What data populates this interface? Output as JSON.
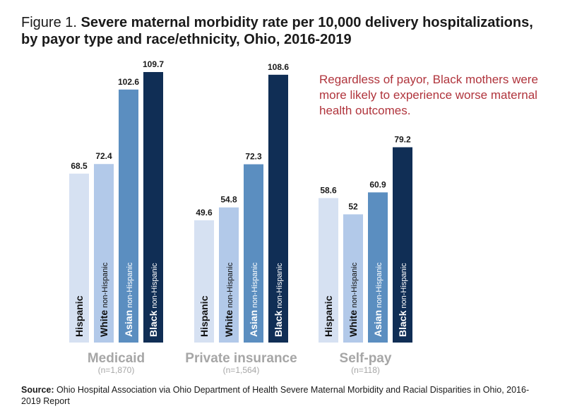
{
  "title": {
    "prefix": "Figure 1.",
    "main": "Severe maternal morbidity rate per 10,000 delivery hospitalizations, by payor type and race/ethnicity, Ohio, 2016-2019"
  },
  "callout": "Regardless of payor, Black mothers were more likely to experience worse maternal health outcomes.",
  "source": {
    "label": "Source:",
    "text": "Ohio Hospital Association via Ohio Department of Health Severe Maternal Morbidity and Racial Disparities in Ohio, 2016-2019 Report"
  },
  "colors": {
    "Hispanic": "#d6e1f2",
    "White": "#b2c9e9",
    "Asian": "#5b8ec0",
    "Black": "#102e55",
    "group_label": "#a6a6a6"
  },
  "chart_data": {
    "type": "bar",
    "title": "Severe maternal morbidity rate per 10,000 delivery hospitalizations, by payor type and race/ethnicity, Ohio, 2016-2019",
    "xlabel": "",
    "ylabel": "",
    "ylim": [
      0,
      110
    ],
    "grid": false,
    "legend": "none (labels inside bars)",
    "groups": [
      {
        "name": "Medicaid",
        "n": "(n=1,870)"
      },
      {
        "name": "Private insurance",
        "n": "(n=1,564)"
      },
      {
        "name": "Self-pay",
        "n": "(n=118)"
      }
    ],
    "series": [
      {
        "name": "Hispanic",
        "label_bold": "Hispanic",
        "label_rest": "",
        "values": [
          68.5,
          49.6,
          58.6
        ]
      },
      {
        "name": "White",
        "label_bold": "White",
        "label_rest": " non-Hispanic",
        "values": [
          72.4,
          54.8,
          52
        ]
      },
      {
        "name": "Asian",
        "label_bold": "Asian",
        "label_rest": " non-Hispanic",
        "values": [
          102.6,
          72.3,
          60.9
        ]
      },
      {
        "name": "Black",
        "label_bold": "Black",
        "label_rest": " non-Hispanic",
        "values": [
          109.7,
          108.6,
          79.2
        ]
      }
    ]
  }
}
